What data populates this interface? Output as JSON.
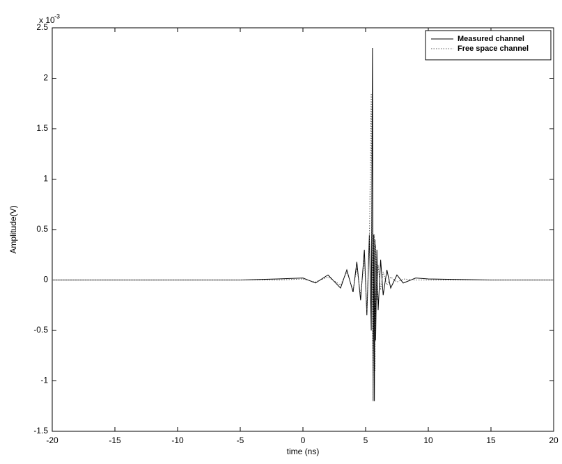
{
  "chart_data": {
    "type": "line",
    "xlabel": "time (ns)",
    "ylabel": "Amplitude(V)",
    "y_multiplier": "x 10",
    "y_multiplier_exponent": "-3",
    "x": [
      -20,
      -15,
      -10,
      -5,
      -2,
      0,
      1,
      2,
      3,
      3.5,
      4,
      4.3,
      4.6,
      4.9,
      5.1,
      5.3,
      5.45,
      5.55,
      5.6,
      5.65,
      5.7,
      5.75,
      5.8,
      5.9,
      6.0,
      6.2,
      6.4,
      6.7,
      7,
      7.5,
      8,
      9,
      10,
      15,
      20
    ],
    "series": [
      {
        "name": "Measured channel",
        "color": "#000000",
        "dash": "solid",
        "values": [
          0,
          0,
          0,
          0,
          0.01,
          0.02,
          -0.03,
          0.05,
          -0.08,
          0.1,
          -0.12,
          0.18,
          -0.2,
          0.3,
          -0.35,
          0.45,
          -0.5,
          2.3,
          -1.2,
          0.45,
          -1.2,
          0.4,
          -0.6,
          0.3,
          -0.3,
          0.2,
          -0.15,
          0.1,
          -0.08,
          0.05,
          -0.03,
          0.02,
          0.01,
          0,
          0
        ]
      },
      {
        "name": "Free space channel",
        "color": "#555555",
        "dash": "dotted",
        "values": [
          0,
          0,
          0,
          0,
          0,
          0.01,
          -0.02,
          0.03,
          -0.05,
          0.08,
          -0.1,
          0.12,
          -0.15,
          0.2,
          -0.3,
          0.35,
          1.85,
          -0.5,
          -1.2,
          0.3,
          0.45,
          -0.9,
          0.35,
          -0.2,
          0.15,
          -0.1,
          0.08,
          -0.05,
          0.03,
          -0.02,
          0.01,
          0,
          0,
          0,
          0
        ]
      }
    ],
    "xlim": [
      -20,
      20
    ],
    "xticks": [
      -20,
      -15,
      -10,
      -5,
      0,
      5,
      10,
      15,
      20
    ],
    "ylim": [
      -1.5,
      2.5
    ],
    "yticks": [
      -1.5,
      -1,
      -0.5,
      0,
      0.5,
      1,
      1.5,
      2,
      2.5
    ],
    "grid": false,
    "legend": "upper right"
  }
}
